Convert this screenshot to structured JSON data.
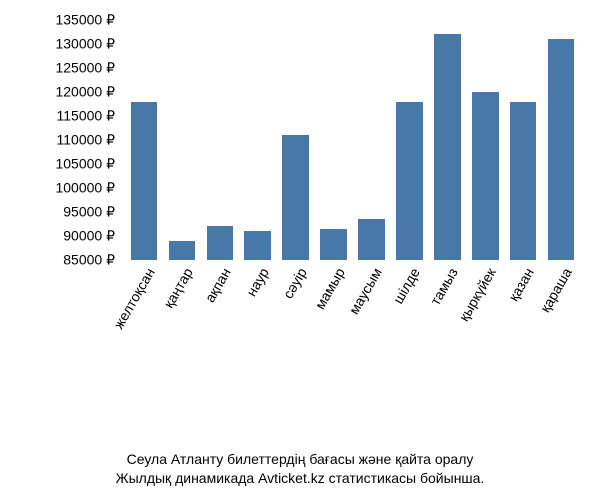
{
  "chart": {
    "type": "bar",
    "categories": [
      "желтоқсан",
      "қаңтар",
      "ақпан",
      "наур",
      "сәуір",
      "мамыр",
      "маусым",
      "шілде",
      "тамыз",
      "қыркүйек",
      "қазан",
      "қараша"
    ],
    "values": [
      118000,
      89000,
      92000,
      91000,
      111000,
      91500,
      93500,
      118000,
      132000,
      120000,
      118000,
      131000
    ],
    "bar_color": "#4878a7",
    "y_ticks": [
      85000,
      90000,
      95000,
      100000,
      105000,
      110000,
      115000,
      120000,
      125000,
      130000,
      135000
    ],
    "ylim": [
      85000,
      135000
    ],
    "currency": "₽",
    "label_fontsize": 14,
    "tick_fontsize": 14,
    "x_rotation_deg": -60,
    "bar_width": 0.7,
    "background_color": "#ffffff",
    "text_color": "#000000"
  },
  "caption": {
    "line1": "Сеула Атланту билеттердің бағасы және қайта оралу",
    "line2": "Жылдық динамикада Avticket.kz статистикасы бойынша."
  }
}
